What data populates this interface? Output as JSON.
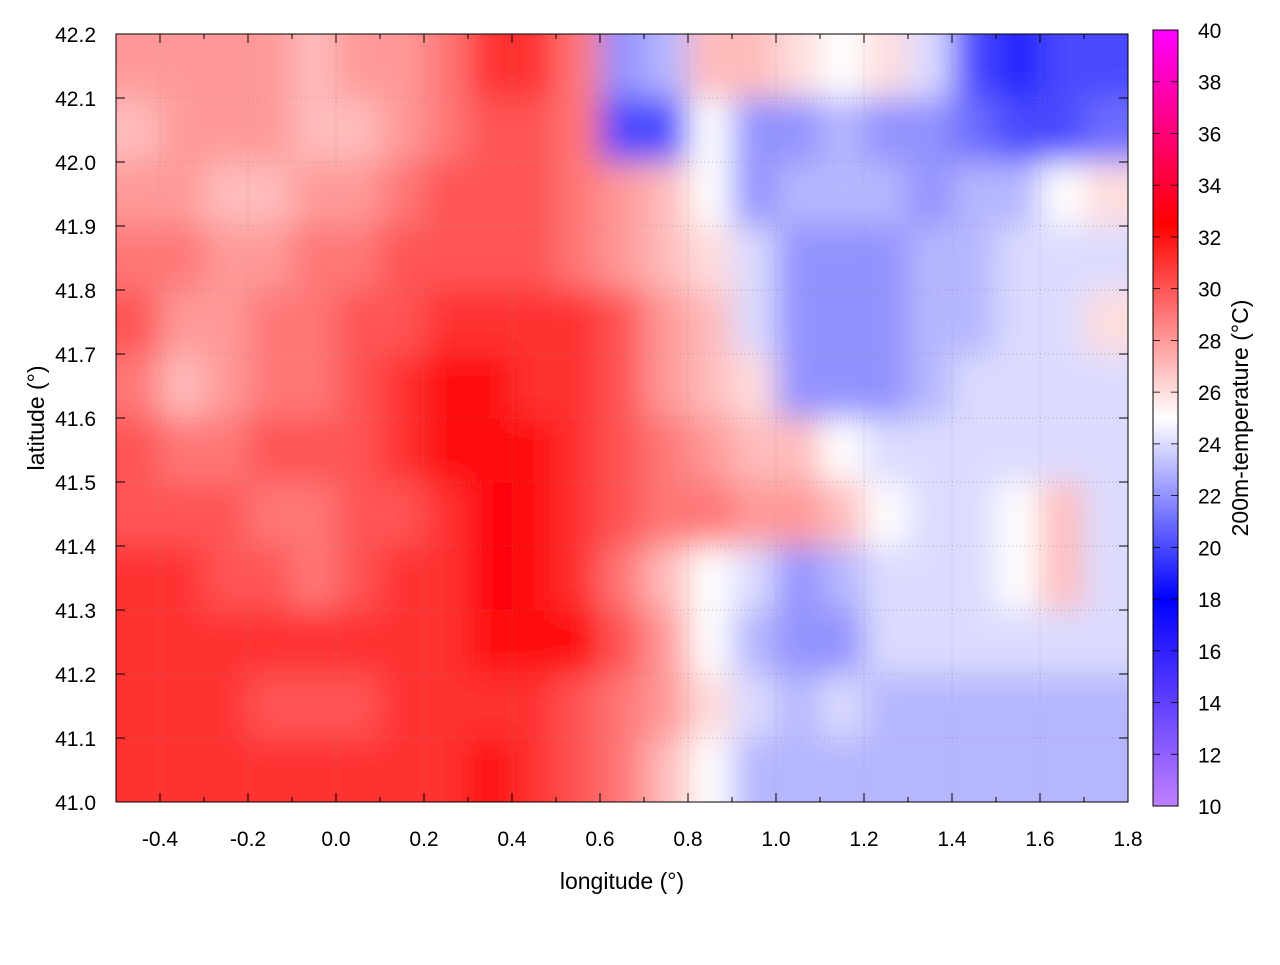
{
  "chart_data": {
    "type": "heatmap",
    "title": "",
    "xlabel": "longitude (°)",
    "ylabel": "latitude (°)",
    "colorbar_label": "200m-temperature (°C)",
    "xlim": [
      -0.5,
      1.8
    ],
    "ylim": [
      41.0,
      42.2
    ],
    "clim": [
      10,
      40
    ],
    "grid": true,
    "x_ticks": [
      "-0.4",
      "-0.2",
      "0.0",
      "0.2",
      "0.4",
      "0.6",
      "0.8",
      "1.0",
      "1.2",
      "1.4",
      "1.6",
      "1.8"
    ],
    "y_ticks": [
      "41.0",
      "41.1",
      "41.2",
      "41.3",
      "41.4",
      "41.5",
      "41.6",
      "41.7",
      "41.8",
      "41.9",
      "42.0",
      "42.1",
      "42.2"
    ],
    "colorbar_ticks": [
      "10",
      "12",
      "14",
      "16",
      "18",
      "20",
      "22",
      "24",
      "26",
      "28",
      "30",
      "32",
      "34",
      "36",
      "38",
      "40"
    ],
    "colormap": [
      {
        "value": 10,
        "color": "#c080ff"
      },
      {
        "value": 18,
        "color": "#0000ff"
      },
      {
        "value": 25,
        "color": "#ffffff"
      },
      {
        "value": 32.5,
        "color": "#ff0000"
      },
      {
        "value": 40,
        "color": "#ff00ff"
      }
    ],
    "x_centers": [
      -0.45,
      -0.35,
      -0.25,
      -0.15,
      -0.05,
      0.05,
      0.15,
      0.25,
      0.35,
      0.45,
      0.55,
      0.65,
      0.75,
      0.85,
      0.95,
      1.05,
      1.15,
      1.25,
      1.35,
      1.45,
      1.55,
      1.65,
      1.75
    ],
    "y_centers": [
      42.15,
      42.05,
      41.95,
      41.85,
      41.75,
      41.65,
      41.55,
      41.45,
      41.35,
      41.25,
      41.15,
      41.05
    ],
    "values": [
      [
        28,
        28,
        28,
        28,
        27,
        28,
        28,
        29,
        31,
        31,
        29,
        22,
        23,
        27,
        27,
        26,
        25,
        26,
        24,
        20,
        19,
        20,
        20
      ],
      [
        27,
        28,
        28,
        28,
        27,
        27,
        28,
        29,
        30,
        30,
        29,
        20,
        20,
        25,
        22,
        22,
        23,
        22,
        22,
        21,
        20,
        20,
        21
      ],
      [
        28,
        28,
        27,
        27,
        28,
        28,
        29,
        30,
        30,
        30,
        29,
        28,
        27,
        25,
        22,
        23,
        23,
        23,
        22,
        23,
        23,
        25,
        26
      ],
      [
        29,
        29,
        28,
        28,
        29,
        29,
        30,
        30,
        30,
        30,
        29,
        28,
        27,
        26,
        24,
        22,
        22,
        22,
        23,
        23,
        24,
        24,
        24
      ],
      [
        30,
        28,
        28,
        29,
        29,
        30,
        30,
        31,
        31,
        31,
        31,
        30,
        28,
        27,
        24,
        22,
        22,
        22,
        23,
        23,
        24,
        24,
        26
      ],
      [
        29,
        27,
        28,
        29,
        29,
        30,
        31,
        32,
        32,
        31,
        31,
        30,
        28,
        27,
        26,
        22,
        22,
        22,
        23,
        24,
        24,
        24,
        24
      ],
      [
        30,
        29,
        29,
        30,
        30,
        30,
        31,
        32,
        32,
        32,
        31,
        30,
        29,
        28,
        27,
        27,
        25,
        24,
        24,
        24,
        24,
        24,
        24
      ],
      [
        30,
        30,
        30,
        29,
        29,
        30,
        30,
        31,
        33,
        32,
        31,
        30,
        29,
        29,
        28,
        28,
        27,
        25,
        24,
        24,
        25,
        27,
        24
      ],
      [
        31,
        31,
        30,
        30,
        29,
        30,
        31,
        31,
        33,
        32,
        31,
        29,
        27,
        25,
        24,
        22,
        23,
        24,
        24,
        24,
        25,
        27,
        24
      ],
      [
        31,
        31,
        31,
        31,
        31,
        31,
        31,
        31,
        32,
        32,
        32,
        30,
        28,
        25,
        23,
        22,
        22,
        24,
        24,
        24,
        24,
        24,
        24
      ],
      [
        31,
        31,
        31,
        30,
        30,
        30,
        31,
        31,
        31,
        31,
        30,
        29,
        28,
        26,
        24,
        23,
        24,
        23,
        23,
        23,
        23,
        23,
        23
      ],
      [
        31,
        31,
        31,
        31,
        31,
        31,
        31,
        31,
        32,
        31,
        30,
        29,
        27,
        25,
        23,
        23,
        23,
        23,
        23,
        23,
        23,
        23,
        23
      ]
    ]
  }
}
